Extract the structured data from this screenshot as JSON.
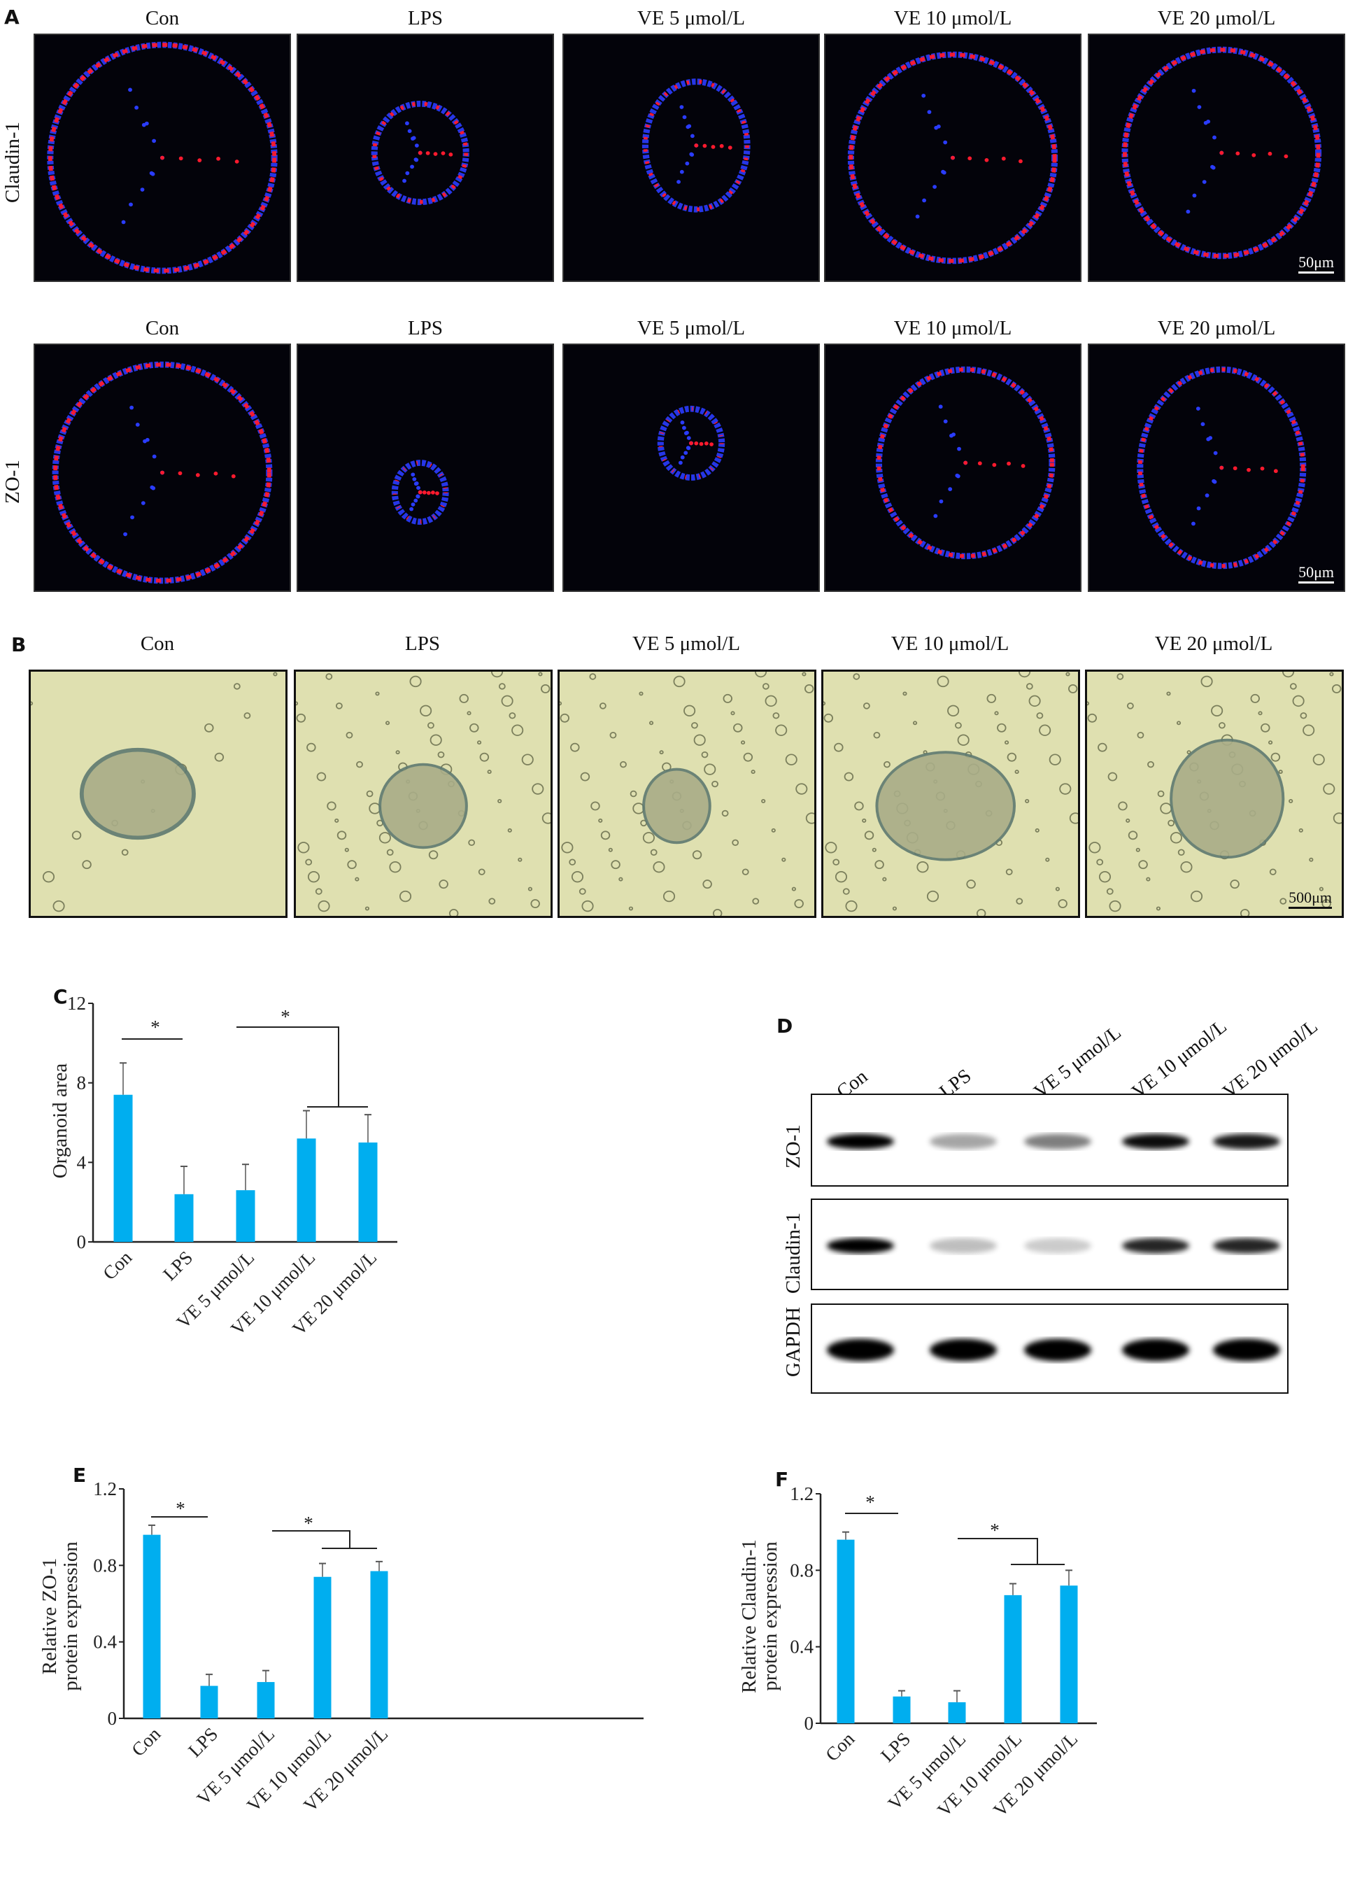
{
  "panels": {
    "a": "A",
    "b": "B",
    "c": "C",
    "d": "D",
    "e": "E",
    "f": "F"
  },
  "groups": [
    "Con",
    "LPS",
    "VE 5 μmol/L",
    "VE 10 μmol/L",
    "VE 20 μmol/L"
  ],
  "panel_a": {
    "row_labels": [
      "Claudin-1",
      "ZO-1"
    ],
    "scale_bar": "50μm",
    "colors": {
      "stain_red": "#ff1a2e",
      "stain_blue": "#2a3cff",
      "background": "#03030a"
    }
  },
  "panel_b": {
    "scale_bar": "500μm",
    "colors": {
      "background": "#dfe0b0",
      "organoid": "#5f7a70"
    }
  },
  "panel_d": {
    "lanes": [
      "Con",
      "LPS",
      "VE 5 μmol/L",
      "VE 10 μmol/L",
      "VE 20 μmol/L"
    ],
    "blots": [
      {
        "label": "ZO-1",
        "band_intensity": [
          1.0,
          0.35,
          0.5,
          0.95,
          0.9
        ]
      },
      {
        "label": "Claudin-1",
        "band_intensity": [
          1.0,
          0.25,
          0.2,
          0.85,
          0.85
        ]
      },
      {
        "label": "GAPDH",
        "band_intensity": [
          1.0,
          1.0,
          1.0,
          1.0,
          1.0
        ]
      }
    ]
  },
  "chart_data": [
    {
      "id": "C",
      "type": "bar",
      "ylabel": "Organoid area",
      "xlabel": "",
      "categories": [
        "Con",
        "LPS",
        "VE 5 μmol/L",
        "VE 10 μmol/L",
        "VE 20 μmol/L"
      ],
      "values": [
        7.4,
        2.4,
        2.6,
        5.2,
        5.0
      ],
      "error_upper": [
        9.0,
        3.8,
        3.9,
        6.6,
        6.4
      ],
      "ylim": [
        0,
        12
      ],
      "yticks": [
        "0",
        "4",
        "8",
        "12"
      ],
      "ytick_values": [
        0,
        4,
        8,
        12
      ],
      "significance": [
        "*",
        "*"
      ],
      "color": "#00aeef",
      "grid": false
    },
    {
      "id": "E",
      "type": "bar",
      "ylabel": [
        "Relative ZO-1",
        "protein expression"
      ],
      "xlabel": "",
      "categories": [
        "Con",
        "LPS",
        "VE 5 μmol/L",
        "VE 10 μmol/L",
        "VE 20 μmol/L"
      ],
      "values": [
        0.96,
        0.17,
        0.19,
        0.74,
        0.77
      ],
      "error_upper": [
        1.01,
        0.23,
        0.25,
        0.81,
        0.82
      ],
      "ylim": [
        0,
        1.2
      ],
      "yticks": [
        "0",
        "0.4",
        "0.8",
        "1.2"
      ],
      "ytick_values": [
        0,
        0.4,
        0.8,
        1.2
      ],
      "significance": [
        "*",
        "*"
      ],
      "color": "#00aeef",
      "grid": false
    },
    {
      "id": "F",
      "type": "bar",
      "ylabel": [
        "Relative Claudin-1",
        "protein expression"
      ],
      "xlabel": "",
      "categories": [
        "Con",
        "LPS",
        "VE 5 μmol/L",
        "VE 10 μmol/L",
        "VE 20 μmol/L"
      ],
      "values": [
        0.96,
        0.14,
        0.11,
        0.67,
        0.72
      ],
      "error_upper": [
        1.0,
        0.17,
        0.17,
        0.73,
        0.8
      ],
      "ylim": [
        0,
        1.2
      ],
      "yticks": [
        "0",
        "0.4",
        "0.8",
        "1.2"
      ],
      "ytick_values": [
        0,
        0.4,
        0.8,
        1.2
      ],
      "significance": [
        "*",
        "*"
      ],
      "color": "#00aeef",
      "grid": false
    }
  ]
}
